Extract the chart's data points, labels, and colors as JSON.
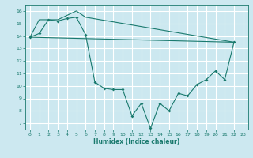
{
  "xlabel": "Humidex (Indice chaleur)",
  "bg_color": "#cce8f0",
  "grid_color": "#ffffff",
  "line_color": "#1a7a6e",
  "xlim": [
    -0.5,
    23.5
  ],
  "ylim": [
    6.5,
    16.5
  ],
  "xticks": [
    0,
    1,
    2,
    3,
    4,
    5,
    6,
    7,
    8,
    9,
    10,
    11,
    12,
    13,
    14,
    15,
    16,
    17,
    18,
    19,
    20,
    21,
    22,
    23
  ],
  "yticks": [
    7,
    8,
    9,
    10,
    11,
    12,
    13,
    14,
    15,
    16
  ],
  "series_detail": {
    "x": [
      0,
      1,
      2,
      3,
      4,
      5,
      6,
      7,
      8,
      9,
      10,
      11,
      12,
      13,
      14,
      15,
      16,
      17,
      18,
      19,
      20,
      21,
      22
    ],
    "y": [
      13.9,
      14.2,
      15.3,
      15.2,
      15.4,
      15.5,
      14.1,
      10.3,
      9.8,
      9.7,
      9.7,
      7.6,
      8.6,
      6.6,
      8.6,
      8.0,
      9.4,
      9.2,
      10.1,
      10.5,
      11.2,
      10.5,
      13.5
    ]
  },
  "series_upper": {
    "x": [
      0,
      1,
      2,
      3,
      5,
      6,
      22
    ],
    "y": [
      13.9,
      15.3,
      15.3,
      15.3,
      16.0,
      15.5,
      13.5
    ]
  },
  "series_lower": {
    "x": [
      0,
      22
    ],
    "y": [
      13.9,
      13.5
    ]
  }
}
